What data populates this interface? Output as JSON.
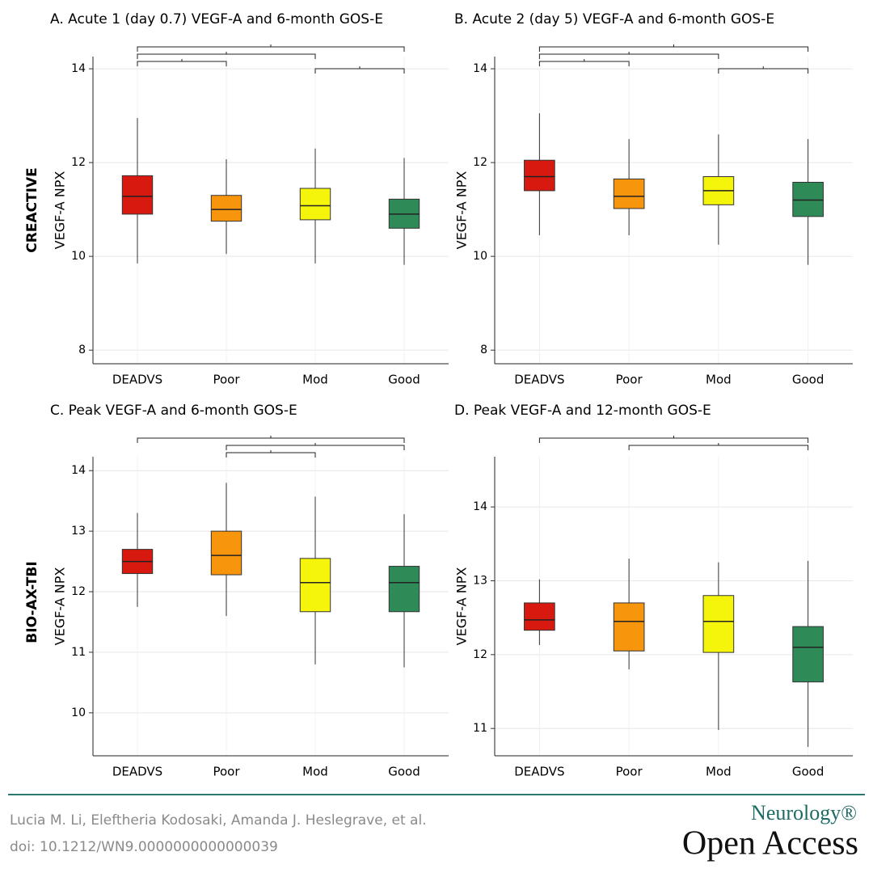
{
  "chart_data": [
    {
      "type": "box",
      "title": "A. Acute 1 (day 0.7) VEGF-A and 6-month GOS-E",
      "ylabel": "VEGF-A NPX",
      "categories": [
        "DEADVS",
        "Poor",
        "Mod",
        "Good"
      ],
      "colors": [
        "#d7190f",
        "#f7950c",
        "#f5f50c",
        "#2e8b57"
      ],
      "boxes": [
        {
          "min": 9.85,
          "q1": 10.9,
          "median": 11.28,
          "q3": 11.72,
          "max": 12.95
        },
        {
          "min": 10.05,
          "q1": 10.75,
          "median": 11.0,
          "q3": 11.3,
          "max": 12.07
        },
        {
          "min": 9.85,
          "q1": 10.78,
          "median": 11.08,
          "q3": 11.45,
          "max": 12.3
        },
        {
          "min": 9.82,
          "q1": 10.6,
          "median": 10.9,
          "q3": 11.22,
          "max": 12.1
        }
      ],
      "ylim": [
        7.71,
        14.26
      ],
      "yticks": [
        8,
        10,
        12,
        14
      ],
      "grid": true,
      "comparisons": [
        [
          "DEADVS",
          "Good"
        ],
        [
          "DEADVS",
          "Mod"
        ],
        [
          "DEADVS",
          "Poor"
        ],
        [
          "Mod",
          "Good"
        ]
      ]
    },
    {
      "type": "box",
      "title": "B. Acute 2 (day 5) VEGF-A and 6-month GOS-E",
      "ylabel": "VEGF-A NPX",
      "categories": [
        "DEADVS",
        "Poor",
        "Mod",
        "Good"
      ],
      "colors": [
        "#d7190f",
        "#f7950c",
        "#f5f50c",
        "#2e8b57"
      ],
      "boxes": [
        {
          "min": 10.45,
          "q1": 11.4,
          "median": 11.7,
          "q3": 12.05,
          "max": 13.05
        },
        {
          "min": 10.45,
          "q1": 11.02,
          "median": 11.28,
          "q3": 11.65,
          "max": 12.5
        },
        {
          "min": 10.25,
          "q1": 11.1,
          "median": 11.4,
          "q3": 11.7,
          "max": 12.6
        },
        {
          "min": 9.82,
          "q1": 10.85,
          "median": 11.2,
          "q3": 11.58,
          "max": 12.5
        }
      ],
      "ylim": [
        7.71,
        14.26
      ],
      "yticks": [
        8,
        10,
        12,
        14
      ],
      "grid": true,
      "comparisons": [
        [
          "DEADVS",
          "Good"
        ],
        [
          "DEADVS",
          "Mod"
        ],
        [
          "DEADVS",
          "Poor"
        ],
        [
          "Mod",
          "Good"
        ]
      ]
    },
    {
      "type": "box",
      "title": "C. Peak VEGF-A and 6-month GOS-E",
      "ylabel": "VEGF-A NPX",
      "categories": [
        "DEADVS",
        "Poor",
        "Mod",
        "Good"
      ],
      "colors": [
        "#d7190f",
        "#f7950c",
        "#f5f50c",
        "#2e8b57"
      ],
      "boxes": [
        {
          "min": 11.75,
          "q1": 12.3,
          "median": 12.5,
          "q3": 12.7,
          "max": 13.3
        },
        {
          "min": 11.6,
          "q1": 12.28,
          "median": 12.6,
          "q3": 13.0,
          "max": 13.8
        },
        {
          "min": 10.8,
          "q1": 11.67,
          "median": 12.15,
          "q3": 12.55,
          "max": 13.57
        },
        {
          "min": 10.75,
          "q1": 11.67,
          "median": 12.15,
          "q3": 12.42,
          "max": 13.28
        }
      ],
      "ylim": [
        9.29,
        14.23
      ],
      "yticks": [
        10,
        11,
        12,
        13,
        14
      ],
      "grid": true,
      "comparisons": [
        [
          "DEADVS",
          "Good"
        ],
        [
          "Poor",
          "Good"
        ],
        [
          "Poor",
          "Mod"
        ]
      ]
    },
    {
      "type": "box",
      "title": "D. Peak VEGF-A and 12-month GOS-E",
      "ylabel": "VEGF-A NPX",
      "categories": [
        "DEADVS",
        "Poor",
        "Mod",
        "Good"
      ],
      "colors": [
        "#d7190f",
        "#f7950c",
        "#f5f50c",
        "#2e8b57"
      ],
      "boxes": [
        {
          "min": 12.13,
          "q1": 12.33,
          "median": 12.47,
          "q3": 12.7,
          "max": 13.02
        },
        {
          "min": 11.8,
          "q1": 12.05,
          "median": 12.45,
          "q3": 12.7,
          "max": 13.3
        },
        {
          "min": 10.98,
          "q1": 12.03,
          "median": 12.45,
          "q3": 12.8,
          "max": 13.25
        },
        {
          "min": 10.75,
          "q1": 11.63,
          "median": 12.1,
          "q3": 12.38,
          "max": 13.27
        }
      ],
      "ylim": [
        10.63,
        14.68
      ],
      "yticks": [
        11,
        12,
        13,
        14
      ],
      "grid": true,
      "comparisons": [
        [
          "DEADVS",
          "Good"
        ],
        [
          "Poor",
          "Good"
        ]
      ]
    }
  ],
  "row_labels": [
    "CREACTIVE",
    "BIO-AX-TBI"
  ],
  "footer": {
    "authors": "Lucia M. Li, Eleftheria Kodosaki, Amanda J. Heslegrave, et al.",
    "doi": "doi: 10.1212/WN9.0000000000000039"
  },
  "logo": {
    "brand": "Neurology®",
    "journal": "Open Access"
  }
}
